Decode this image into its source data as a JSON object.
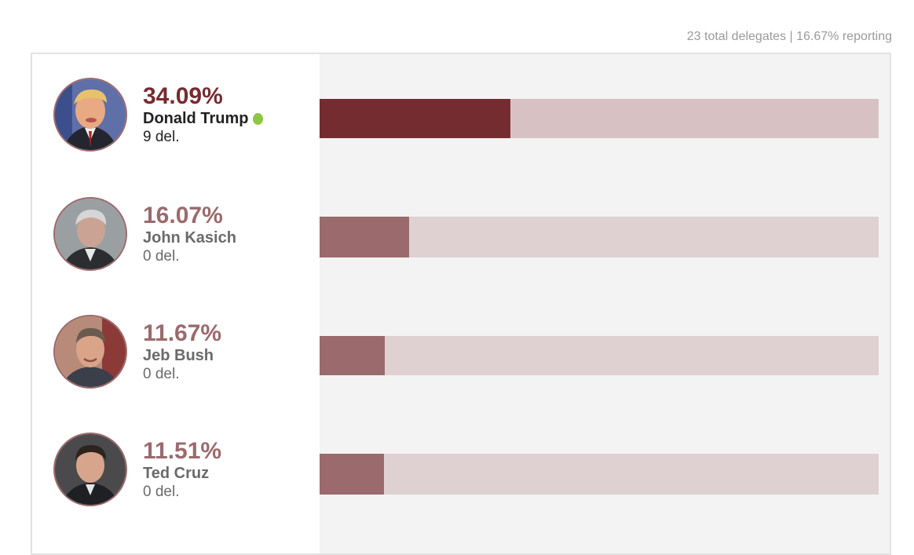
{
  "summary": {
    "total_delegates": "23 total delegates",
    "separator": "|",
    "reporting": "16.67% reporting"
  },
  "colors": {
    "leader_fill": "#752c31",
    "leader_track": "#d8c1c3",
    "other_fill": "#9b6a6c",
    "other_track": "#dfd0d1",
    "winner_dot": "#8dc63f"
  },
  "chart_data": {
    "type": "bar",
    "orientation": "horizontal",
    "title": "",
    "xlabel": "",
    "ylabel": "",
    "xlim": [
      0,
      100
    ],
    "categories": [
      "Donald Trump",
      "John Kasich",
      "Jeb Bush",
      "Ted Cruz"
    ],
    "values": [
      34.09,
      16.07,
      11.67,
      11.51
    ],
    "candidates": [
      {
        "name": "Donald Trump",
        "pct": "34.09%",
        "value": 34.09,
        "delegates": "9 del.",
        "winner": true,
        "photo": "donald-trump-photo"
      },
      {
        "name": "John Kasich",
        "pct": "16.07%",
        "value": 16.07,
        "delegates": "0 del.",
        "winner": false,
        "photo": "john-kasich-photo"
      },
      {
        "name": "Jeb Bush",
        "pct": "11.67%",
        "value": 11.67,
        "delegates": "0 del.",
        "winner": false,
        "photo": "jeb-bush-photo"
      },
      {
        "name": "Ted Cruz",
        "pct": "11.51%",
        "value": 11.51,
        "delegates": "0 del.",
        "winner": false,
        "photo": "ted-cruz-photo"
      }
    ]
  }
}
